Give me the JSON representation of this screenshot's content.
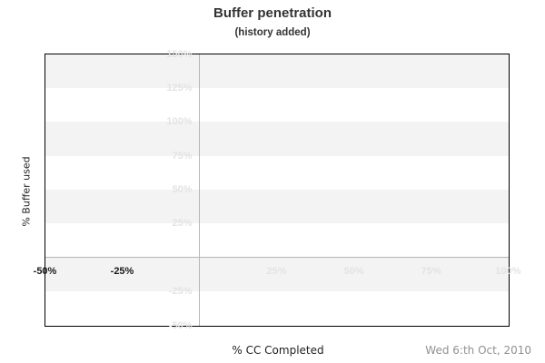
{
  "header": {
    "title": "Buffer penetration",
    "subtitle": "(history added)"
  },
  "footer": {
    "date": "Wed 6:th Oct, 2010"
  },
  "chart_data": {
    "type": "line",
    "title": "Buffer penetration",
    "subtitle": "(history added)",
    "xlabel": "% CC Completed",
    "ylabel": "% Buffer used",
    "xlim": [
      -50,
      100
    ],
    "ylim": [
      -50,
      150
    ],
    "x_ticks": [
      {
        "value": -50,
        "label": "-50%",
        "emphasized": true
      },
      {
        "value": -25,
        "label": "-25%",
        "emphasized": true
      },
      {
        "value": 25,
        "label": "25%",
        "emphasized": false
      },
      {
        "value": 50,
        "label": "50%",
        "emphasized": false
      },
      {
        "value": 75,
        "label": "75%",
        "emphasized": false
      },
      {
        "value": 100,
        "label": "100%",
        "emphasized": false
      }
    ],
    "y_ticks": [
      {
        "value": 150,
        "label": "150%"
      },
      {
        "value": 125,
        "label": "125%"
      },
      {
        "value": 100,
        "label": "100%"
      },
      {
        "value": 75,
        "label": "75%"
      },
      {
        "value": 50,
        "label": "50%"
      },
      {
        "value": 25,
        "label": "25%"
      },
      {
        "value": -25,
        "label": "-25%"
      },
      {
        "value": -50,
        "label": "-50%"
      }
    ],
    "series": [],
    "grid": {
      "horizontal_band_step_pct": 25,
      "bands_alternate_shading": true,
      "zero_axis_lines": true,
      "legend": "none"
    }
  },
  "colors": {
    "background": "#ffffff",
    "band_shaded": "#f3f3f3",
    "band_plain": "#ffffff",
    "tick_label_light": "#e3e3e3",
    "tick_label_dark": "#1a1a1a",
    "zero_axis_line": "#b6b6b6",
    "plot_border": "#000000",
    "title_text": "#333333",
    "axis_title_text": "#222222",
    "date_text": "#919191"
  }
}
